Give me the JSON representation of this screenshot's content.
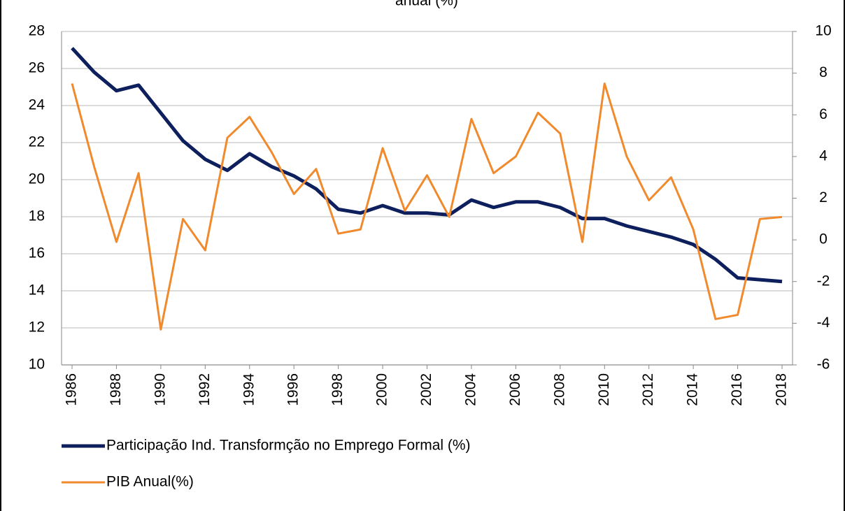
{
  "chart_data": {
    "type": "line",
    "title": "anual (%)",
    "x": [
      1986,
      1987,
      1988,
      1989,
      1990,
      1991,
      1992,
      1993,
      1994,
      1995,
      1996,
      1997,
      1998,
      1999,
      2000,
      2001,
      2002,
      2003,
      2004,
      2005,
      2006,
      2007,
      2008,
      2009,
      2010,
      2011,
      2012,
      2013,
      2014,
      2015,
      2016,
      2017,
      2018
    ],
    "xlim": [
      1986,
      2018
    ],
    "xticks": [
      1986,
      1988,
      1990,
      1992,
      1994,
      1996,
      1998,
      2000,
      2002,
      2004,
      2006,
      2008,
      2010,
      2012,
      2014,
      2016,
      2018
    ],
    "ylim": [
      10,
      28
    ],
    "yticks": [
      10,
      12,
      14,
      16,
      18,
      20,
      22,
      24,
      26,
      28
    ],
    "y2lim": [
      -6,
      10
    ],
    "y2ticks": [
      -6,
      -4,
      -2,
      0,
      2,
      4,
      6,
      8,
      10
    ],
    "grid": true,
    "legend": "bottom",
    "series": [
      {
        "name": "Participação Ind. Transformção no Emprego Formal (%)",
        "color": "#0d1f5c",
        "axis": "y",
        "values": [
          27.1,
          25.8,
          24.8,
          25.1,
          23.6,
          22.1,
          21.1,
          20.5,
          21.4,
          20.7,
          20.2,
          19.5,
          18.4,
          18.2,
          18.6,
          18.2,
          18.2,
          18.1,
          18.9,
          18.5,
          18.8,
          18.8,
          18.5,
          17.9,
          17.9,
          17.5,
          17.2,
          16.9,
          16.5,
          15.7,
          14.7,
          14.6,
          14.5
        ]
      },
      {
        "name": "PIB Anual(%)",
        "color": "#f08a2c",
        "axis": "y2",
        "values": [
          7.5,
          3.5,
          -0.1,
          3.2,
          -4.3,
          1.0,
          -0.5,
          4.9,
          5.9,
          4.2,
          2.2,
          3.4,
          0.3,
          0.5,
          4.4,
          1.4,
          3.1,
          1.1,
          5.8,
          3.2,
          4.0,
          6.1,
          5.1,
          -0.1,
          7.5,
          4.0,
          1.9,
          3.0,
          0.5,
          -3.8,
          -3.6,
          1.0,
          1.1
        ]
      }
    ]
  }
}
